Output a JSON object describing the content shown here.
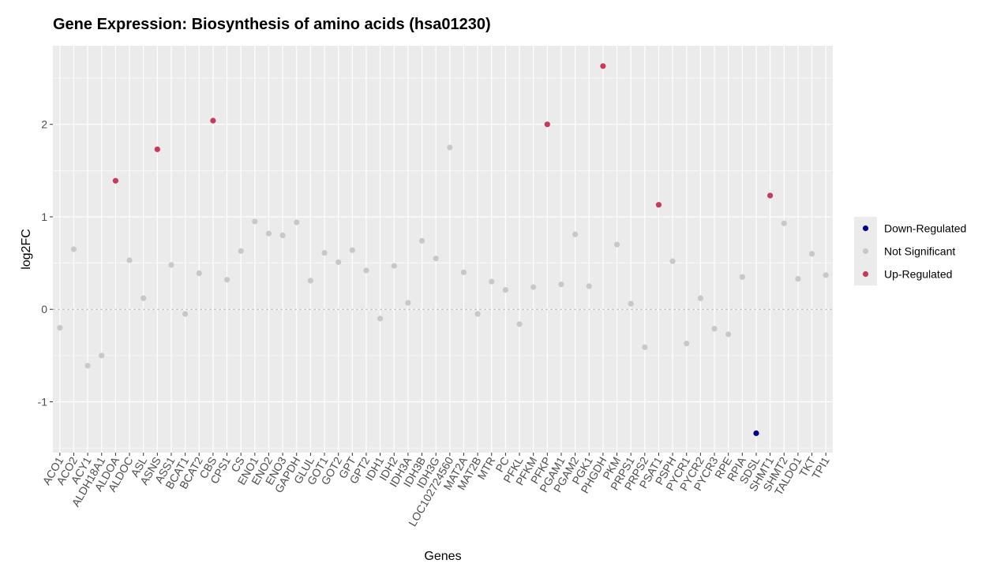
{
  "chart_data": {
    "type": "scatter",
    "title": "Gene Expression: Biosynthesis of amino acids (hsa01230)",
    "xlabel": "Genes",
    "ylabel": "log2FC",
    "ylim": [
      -1.55,
      2.85
    ],
    "yticks": [
      -1,
      0,
      1,
      2
    ],
    "reference_line": 0,
    "grid": true,
    "legend_position": "right",
    "colors": {
      "Down-Regulated": "#00008B",
      "Not Significant": "#C8C8C8",
      "Up-Regulated": "#C8385F",
      "panel": "#EBEBEB",
      "grid": "#FFFFFF"
    },
    "legend": [
      {
        "name": "Down-Regulated"
      },
      {
        "name": "Not Significant"
      },
      {
        "name": "Up-Regulated"
      }
    ],
    "points": [
      {
        "x": "ACO1",
        "y": -0.2,
        "group": "Not Significant"
      },
      {
        "x": "ACO2",
        "y": 0.65,
        "group": "Not Significant"
      },
      {
        "x": "ACY1",
        "y": -0.61,
        "group": "Not Significant"
      },
      {
        "x": "ALDH18A1",
        "y": -0.5,
        "group": "Not Significant"
      },
      {
        "x": "ALDOA",
        "y": 1.39,
        "group": "Up-Regulated"
      },
      {
        "x": "ALDOC",
        "y": 0.53,
        "group": "Not Significant"
      },
      {
        "x": "ASL",
        "y": 0.12,
        "group": "Not Significant"
      },
      {
        "x": "ASNS",
        "y": 1.73,
        "group": "Up-Regulated"
      },
      {
        "x": "ASS1",
        "y": 0.48,
        "group": "Not Significant"
      },
      {
        "x": "BCAT1",
        "y": -0.05,
        "group": "Not Significant"
      },
      {
        "x": "BCAT2",
        "y": 0.39,
        "group": "Not Significant"
      },
      {
        "x": "CBS",
        "y": 2.04,
        "group": "Up-Regulated"
      },
      {
        "x": "CPS1",
        "y": 0.32,
        "group": "Not Significant"
      },
      {
        "x": "CS",
        "y": 0.63,
        "group": "Not Significant"
      },
      {
        "x": "ENO1",
        "y": 0.95,
        "group": "Not Significant"
      },
      {
        "x": "ENO2",
        "y": 0.82,
        "group": "Not Significant"
      },
      {
        "x": "ENO3",
        "y": 0.8,
        "group": "Not Significant"
      },
      {
        "x": "GAPDH",
        "y": 0.94,
        "group": "Not Significant"
      },
      {
        "x": "GLUL",
        "y": 0.31,
        "group": "Not Significant"
      },
      {
        "x": "GOT1",
        "y": 0.61,
        "group": "Not Significant"
      },
      {
        "x": "GOT2",
        "y": 0.51,
        "group": "Not Significant"
      },
      {
        "x": "GPT",
        "y": 0.64,
        "group": "Not Significant"
      },
      {
        "x": "GPT2",
        "y": 0.42,
        "group": "Not Significant"
      },
      {
        "x": "IDH1",
        "y": -0.1,
        "group": "Not Significant"
      },
      {
        "x": "IDH2",
        "y": 0.47,
        "group": "Not Significant"
      },
      {
        "x": "IDH3A",
        "y": 0.07,
        "group": "Not Significant"
      },
      {
        "x": "IDH3B",
        "y": 0.74,
        "group": "Not Significant"
      },
      {
        "x": "IDH3G",
        "y": 0.55,
        "group": "Not Significant"
      },
      {
        "x": "LOC102724560",
        "y": 1.75,
        "group": "Not Significant"
      },
      {
        "x": "MAT2A",
        "y": 0.4,
        "group": "Not Significant"
      },
      {
        "x": "MAT2B",
        "y": -0.05,
        "group": "Not Significant"
      },
      {
        "x": "MTR",
        "y": 0.3,
        "group": "Not Significant"
      },
      {
        "x": "PC",
        "y": 0.21,
        "group": "Not Significant"
      },
      {
        "x": "PFKL",
        "y": -0.16,
        "group": "Not Significant"
      },
      {
        "x": "PFKM",
        "y": 0.24,
        "group": "Not Significant"
      },
      {
        "x": "PFKP",
        "y": 2.0,
        "group": "Up-Regulated"
      },
      {
        "x": "PGAM1",
        "y": 0.27,
        "group": "Not Significant"
      },
      {
        "x": "PGAM2",
        "y": 0.81,
        "group": "Not Significant"
      },
      {
        "x": "PGK1",
        "y": 0.25,
        "group": "Not Significant"
      },
      {
        "x": "PHGDH",
        "y": 2.63,
        "group": "Up-Regulated"
      },
      {
        "x": "PKM",
        "y": 0.7,
        "group": "Not Significant"
      },
      {
        "x": "PRPS1",
        "y": 0.06,
        "group": "Not Significant"
      },
      {
        "x": "PRPS2",
        "y": -0.41,
        "group": "Not Significant"
      },
      {
        "x": "PSAT1",
        "y": 1.13,
        "group": "Up-Regulated"
      },
      {
        "x": "PSPH",
        "y": 0.52,
        "group": "Not Significant"
      },
      {
        "x": "PYCR1",
        "y": -0.37,
        "group": "Not Significant"
      },
      {
        "x": "PYCR2",
        "y": 0.12,
        "group": "Not Significant"
      },
      {
        "x": "PYCR3",
        "y": -0.21,
        "group": "Not Significant"
      },
      {
        "x": "RPE",
        "y": -0.27,
        "group": "Not Significant"
      },
      {
        "x": "RPIA",
        "y": 0.35,
        "group": "Not Significant"
      },
      {
        "x": "SDSL",
        "y": -1.34,
        "group": "Down-Regulated"
      },
      {
        "x": "SHMT1",
        "y": 1.23,
        "group": "Up-Regulated"
      },
      {
        "x": "SHMT2",
        "y": 0.93,
        "group": "Not Significant"
      },
      {
        "x": "TALDO1",
        "y": 0.33,
        "group": "Not Significant"
      },
      {
        "x": "TKT",
        "y": 0.6,
        "group": "Not Significant"
      },
      {
        "x": "TPI1",
        "y": 0.37,
        "group": "Not Significant"
      }
    ]
  }
}
